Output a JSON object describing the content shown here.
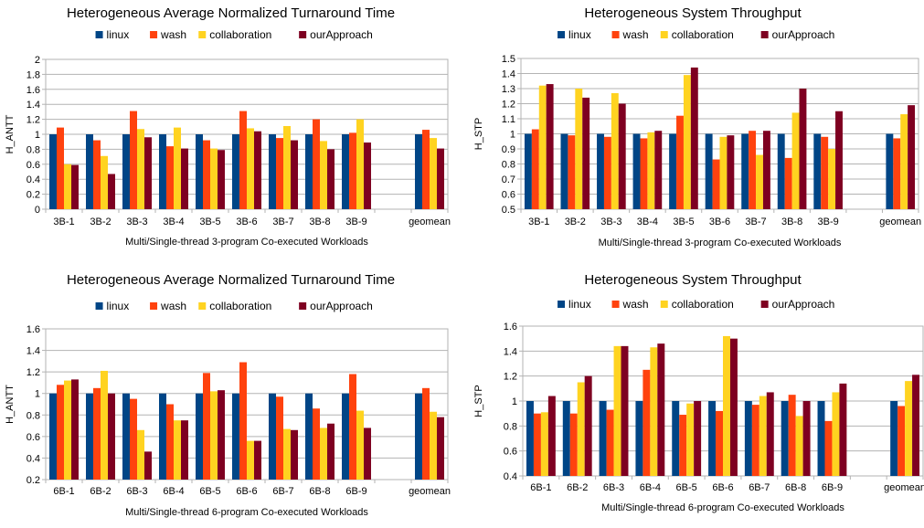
{
  "chart_data": [
    {
      "type": "bar",
      "title": "Heterogeneous Average Normalized Turnaround Time",
      "xlabel": "Multi/Single-thread 3-program Co-executed Workloads",
      "ylabel": "H_ANTT",
      "ylim": [
        0,
        2
      ],
      "ytick_step": 0.2,
      "yticks": [
        "0",
        "0.2",
        "0.4",
        "0.6",
        "0.8",
        "1",
        "1.2",
        "1.4",
        "1.6",
        "1.8",
        "2"
      ],
      "grid": true,
      "legend": "top",
      "categories": [
        "3B-1",
        "3B-2",
        "3B-3",
        "3B-4",
        "3B-5",
        "3B-6",
        "3B-7",
        "3B-8",
        "3B-9",
        "",
        "geomean"
      ],
      "series": [
        {
          "name": "linux",
          "color": "#004586",
          "values": [
            1,
            1,
            1,
            1,
            1,
            1,
            1,
            1,
            1,
            null,
            1
          ]
        },
        {
          "name": "wash",
          "color": "#ff420e",
          "values": [
            1.09,
            0.92,
            1.31,
            0.84,
            0.92,
            1.31,
            0.95,
            1.2,
            1.02,
            null,
            1.06
          ]
        },
        {
          "name": "collaboration",
          "color": "#ffd320",
          "values": [
            0.6,
            0.71,
            1.07,
            1.09,
            0.81,
            1.08,
            1.11,
            0.91,
            1.2,
            null,
            0.95
          ]
        },
        {
          "name": "ourApproach",
          "color": "#7e0021",
          "values": [
            0.59,
            0.47,
            0.96,
            0.81,
            0.79,
            1.04,
            0.92,
            0.8,
            0.89,
            null,
            0.81
          ]
        }
      ]
    },
    {
      "type": "bar",
      "title": "Heterogeneous System Throughput",
      "xlabel": "Multi/Single-thread 3-program Co-executed Workloads",
      "ylabel": "H_STP",
      "ylim": [
        0.5,
        1.5
      ],
      "ytick_step": 0.1,
      "yticks": [
        "0.5",
        "0.6",
        "0.7",
        "0.8",
        "0.9",
        "1",
        "1.1",
        "1.2",
        "1.3",
        "1.4",
        "1.5"
      ],
      "grid": true,
      "legend": "top",
      "categories": [
        "3B-1",
        "3B-2",
        "3B-3",
        "3B-4",
        "3B-5",
        "3B-6",
        "3B-7",
        "3B-8",
        "3B-9",
        "",
        "geomean"
      ],
      "series": [
        {
          "name": "linux",
          "color": "#004586",
          "values": [
            1,
            1,
            1,
            1,
            1,
            1,
            1,
            1,
            1,
            null,
            1
          ]
        },
        {
          "name": "wash",
          "color": "#ff420e",
          "values": [
            1.03,
            0.99,
            0.98,
            0.97,
            1.12,
            0.83,
            1.02,
            0.84,
            0.98,
            null,
            0.97
          ]
        },
        {
          "name": "collaboration",
          "color": "#ffd320",
          "values": [
            1.32,
            1.3,
            1.27,
            1.01,
            1.39,
            0.98,
            0.86,
            1.14,
            0.9,
            null,
            1.13
          ]
        },
        {
          "name": "ourApproach",
          "color": "#7e0021",
          "values": [
            1.33,
            1.24,
            1.2,
            1.02,
            1.44,
            0.99,
            1.02,
            1.3,
            1.15,
            null,
            1.19
          ]
        }
      ]
    },
    {
      "type": "bar",
      "title": "Heterogeneous Average Normalized Turnaround Time",
      "xlabel": "Multi/Single-thread 6-program Co-executed Workloads",
      "ylabel": "H_ANTT",
      "ylim": [
        0.2,
        1.6
      ],
      "ytick_step": 0.2,
      "yticks": [
        "0.2",
        "0.4",
        "0.6",
        "0.8",
        "1",
        "1.2",
        "1.4",
        "1.6"
      ],
      "grid": true,
      "legend": "top",
      "categories": [
        "6B-1",
        "6B-2",
        "6B-3",
        "6B-4",
        "6B-5",
        "6B-6",
        "6B-7",
        "6B-8",
        "6B-9",
        "",
        "geomean"
      ],
      "series": [
        {
          "name": "linux",
          "color": "#004586",
          "values": [
            1,
            1,
            1,
            1,
            1,
            1,
            1,
            1,
            1,
            null,
            1
          ]
        },
        {
          "name": "wash",
          "color": "#ff420e",
          "values": [
            1.08,
            1.05,
            0.95,
            0.9,
            1.19,
            1.29,
            0.97,
            0.86,
            1.18,
            null,
            1.05
          ]
        },
        {
          "name": "collaboration",
          "color": "#ffd320",
          "values": [
            1.12,
            1.21,
            0.66,
            0.75,
            1.02,
            0.56,
            0.67,
            0.68,
            0.84,
            null,
            0.83
          ]
        },
        {
          "name": "ourApproach",
          "color": "#7e0021",
          "values": [
            1.13,
            1.0,
            0.46,
            0.75,
            1.03,
            0.56,
            0.66,
            0.72,
            0.68,
            null,
            0.78
          ]
        }
      ]
    },
    {
      "type": "bar",
      "title": "Heterogeneous System Throughput",
      "xlabel": "Multi/Single-thread 6-program Co-executed Workloads",
      "ylabel": "H_STP",
      "ylim": [
        0.4,
        1.6
      ],
      "ytick_step": 0.2,
      "yticks": [
        "0.4",
        "0.6",
        "0.8",
        "1",
        "1.2",
        "1.4",
        "1.6"
      ],
      "grid": true,
      "legend": "top",
      "categories": [
        "6B-1",
        "6B-2",
        "6B-3",
        "6B-4",
        "6B-5",
        "6B-6",
        "6B-7",
        "6B-8",
        "6B-9",
        "",
        "geomean"
      ],
      "series": [
        {
          "name": "linux",
          "color": "#004586",
          "values": [
            1,
            1,
            1,
            1,
            1,
            1,
            1,
            1,
            1,
            null,
            1
          ]
        },
        {
          "name": "wash",
          "color": "#ff420e",
          "values": [
            0.9,
            0.9,
            0.93,
            1.25,
            0.89,
            0.92,
            0.97,
            1.05,
            0.84,
            null,
            0.96
          ]
        },
        {
          "name": "collaboration",
          "color": "#ffd320",
          "values": [
            0.91,
            1.15,
            1.44,
            1.43,
            0.98,
            1.52,
            1.04,
            0.88,
            1.07,
            null,
            1.16
          ]
        },
        {
          "name": "ourApproach",
          "color": "#7e0021",
          "values": [
            1.04,
            1.2,
            1.44,
            1.46,
            1.0,
            1.5,
            1.07,
            1.0,
            1.14,
            null,
            1.21
          ]
        }
      ]
    }
  ]
}
